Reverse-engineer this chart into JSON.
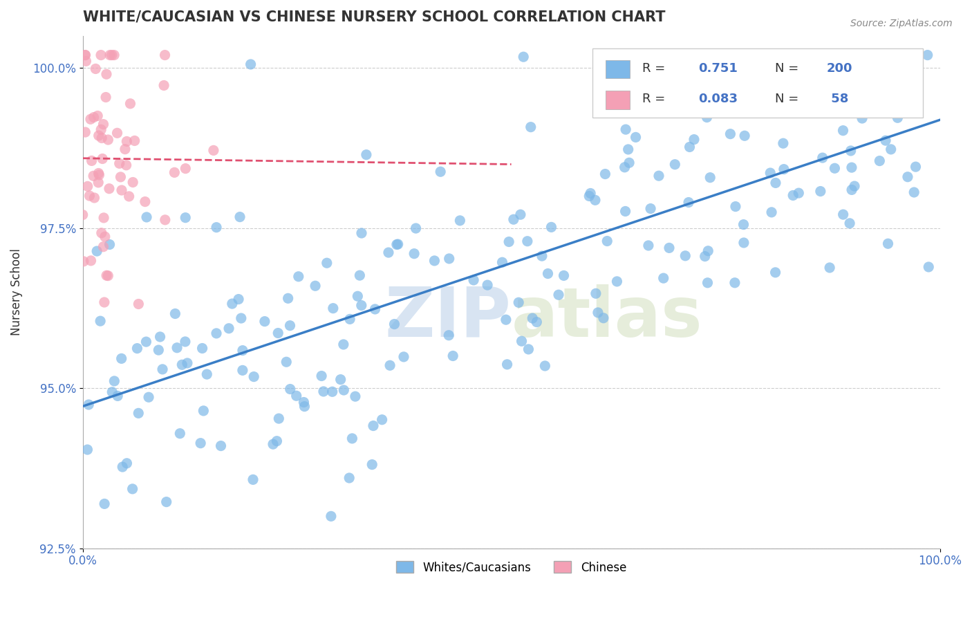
{
  "title": "WHITE/CAUCASIAN VS CHINESE NURSERY SCHOOL CORRELATION CHART",
  "source_text": "Source: ZipAtlas.com",
  "ylabel": "Nursery School",
  "xlabel": "",
  "blue_R": 0.751,
  "blue_N": 200,
  "pink_R": 0.083,
  "pink_N": 58,
  "blue_color": "#7EB8E8",
  "pink_color": "#F4A0B5",
  "blue_line_color": "#3A7EC6",
  "pink_line_color": "#E05070",
  "watermark_zip": "ZIP",
  "watermark_atlas": "atlas",
  "legend_labels": [
    "Whites/Caucasians",
    "Chinese"
  ],
  "xlim": [
    0.0,
    1.0
  ],
  "ylim": [
    0.925,
    1.005
  ],
  "yticks": [
    0.925,
    0.95,
    0.975,
    1.0
  ],
  "ytick_labels": [
    "92.5%",
    "95.0%",
    "97.5%",
    "100.0%"
  ],
  "xtick_labels": [
    "0.0%",
    "100.0%"
  ],
  "xticks": [
    0.0,
    1.0
  ],
  "title_color": "#333333",
  "title_fontsize": 15,
  "axis_color": "#aaaaaa",
  "grid_color": "#cccccc",
  "background_color": "#ffffff",
  "blue_seed": 42,
  "pink_seed": 7
}
